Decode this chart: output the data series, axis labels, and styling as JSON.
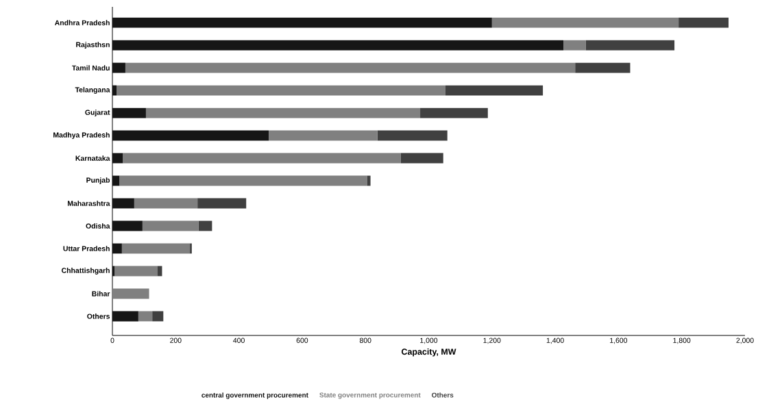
{
  "chart_data": {
    "type": "bar",
    "orientation": "horizontal",
    "stacked": true,
    "xlabel": "Capacity, MW",
    "categories": [
      "Andhra Pradesh",
      "Rajasthsn",
      "Tamil Nadu",
      "Telangana",
      "Gujarat",
      "Madhya Pradesh",
      "Karnataka",
      "Punjab",
      "Maharashtra",
      "Odisha",
      "Uttar Pradesh",
      "Chhattishgarh",
      "Bihar",
      "Others"
    ],
    "series": [
      {
        "name": "central government procurement",
        "color": "#161616",
        "values": [
          1200,
          1426,
          41,
          13,
          106,
          494,
          33,
          22,
          69,
          95,
          30,
          7,
          0,
          82
        ]
      },
      {
        "name": "State government procurement",
        "color": "#808080",
        "values": [
          590,
          71,
          1422,
          1040,
          867,
          344,
          879,
          784,
          200,
          177,
          215,
          136,
          116,
          44
        ]
      },
      {
        "name": "Others",
        "color": "#404040",
        "values": [
          158,
          280,
          174,
          308,
          214,
          221,
          134,
          10,
          154,
          43,
          6,
          14,
          0,
          35
        ]
      }
    ],
    "xlim": [
      0,
      2000
    ],
    "xticks": [
      0,
      200,
      400,
      600,
      800,
      {
        "value": 1000,
        "label": "1,000"
      },
      {
        "value": 1200,
        "label": "1,200"
      },
      {
        "value": 1400,
        "label": "1,400"
      },
      {
        "value": 1600,
        "label": "1,600"
      },
      {
        "value": 1800,
        "label": "1,800"
      },
      {
        "value": 2000,
        "label": "2,000"
      }
    ],
    "grid": false,
    "legend": "bottom"
  }
}
